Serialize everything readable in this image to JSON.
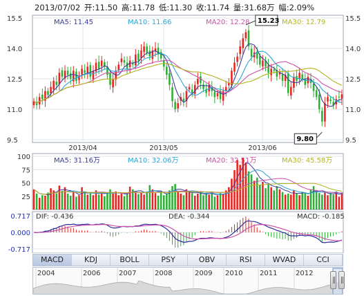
{
  "info": {
    "date": "2013/07/02",
    "open": "开:11.50",
    "high": "高:11.78",
    "low": "低:11.30",
    "close": "收:11.74",
    "volume": "量:31.68万",
    "change": "幅:2.09%"
  },
  "colors": {
    "up": "#e8231f",
    "down": "#2bb033",
    "ma5": "#3a3a9c",
    "ma10": "#2aa5d6",
    "ma20": "#cc4fa8",
    "ma30": "#b4b41e"
  },
  "tabs": [
    "MACD",
    "KDJ",
    "BOLL",
    "PSY",
    "OBV",
    "RSI",
    "WVAD",
    "CCI"
  ],
  "active_tab": "MACD",
  "navigator_years": [
    "2004",
    "2006",
    "2007",
    "2008",
    "2009",
    "2010",
    "2011",
    "2012"
  ],
  "chart_data": [
    {
      "type": "candlestick",
      "y_ticks": [
        "15.5",
        "14.0",
        "12.5",
        "11.0",
        "9.5"
      ],
      "ylim": [
        9.5,
        15.5
      ],
      "x_ticks": [
        "2013/04",
        "2013/05",
        "2013/06"
      ],
      "legend": [
        "MA5: 11.45",
        "MA10: 11.66",
        "MA20: 12.28",
        "MA30: 12.79"
      ],
      "annotations": {
        "high": "15.23",
        "low": "9.80"
      },
      "closes": [
        11.4,
        11.2,
        11.6,
        11.5,
        11.9,
        11.7,
        12.1,
        12.4,
        12.2,
        12.8,
        12.6,
        12.9,
        12.7,
        12.5,
        12.9,
        12.4,
        12.6,
        13.0,
        12.8,
        13.1,
        12.6,
        12.9,
        13.3,
        13.0,
        13.4,
        13.1,
        12.7,
        12.2,
        12.5,
        12.9,
        13.2,
        13.5,
        13.3,
        13.0,
        13.4,
        13.2,
        13.7,
        13.4,
        13.9,
        14.1,
        13.8,
        13.6,
        13.9,
        14.0,
        13.7,
        13.5,
        13.1,
        12.7,
        12.2,
        11.4,
        11.0,
        11.3,
        11.6,
        11.4,
        11.9,
        12.1,
        11.8,
        12.2,
        12.5,
        12.3,
        12.0,
        11.8,
        12.2,
        11.9,
        11.6,
        11.8,
        11.5,
        11.9,
        12.1,
        12.3,
        12.9,
        13.3,
        13.6,
        14.1,
        14.5,
        14.8,
        14.1,
        13.6,
        13.8,
        13.5,
        13.2,
        13.4,
        13.1,
        12.8,
        13.0,
        12.9,
        12.6,
        12.8,
        12.4,
        12.7,
        11.8,
        12.1,
        12.6,
        12.4,
        12.8,
        12.5,
        12.2,
        12.6,
        12.3,
        11.9,
        11.6,
        11.0,
        10.4,
        11.3,
        11.6,
        11.4,
        11.2,
        11.5,
        11.6,
        11.74
      ]
    },
    {
      "type": "bar",
      "y_ticks": [
        "100",
        "75",
        "50",
        "25"
      ],
      "ylim": [
        0,
        100
      ],
      "legend": [
        "MA5: 31.16万",
        "MA10: 32.06万",
        "MA20: 32.51万",
        "MA30: 45.58万"
      ],
      "values": [
        38,
        30,
        22,
        27,
        26,
        32,
        40,
        36,
        30,
        45,
        35,
        42,
        30,
        26,
        34,
        24,
        27,
        42,
        33,
        28,
        31,
        27,
        36,
        28,
        33,
        25,
        31,
        38,
        30,
        34,
        27,
        30,
        25,
        31,
        43,
        38,
        34,
        29,
        33,
        28,
        34,
        46,
        38,
        31,
        26,
        34,
        27,
        30,
        36,
        44,
        48,
        33,
        30,
        27,
        38,
        35,
        31,
        26,
        30,
        33,
        27,
        31,
        28,
        33,
        24,
        27,
        31,
        29,
        36,
        42,
        58,
        74,
        93,
        84,
        97,
        88,
        72,
        66,
        54,
        60,
        46,
        52,
        40,
        48,
        42,
        36,
        44,
        38,
        33,
        28,
        30,
        28,
        36,
        31,
        27,
        33,
        31,
        26,
        38,
        44,
        35,
        31,
        28,
        33,
        27,
        31,
        28,
        34,
        24,
        32
      ]
    },
    {
      "type": "line",
      "y_ticks": [
        "0.717",
        "0.000",
        "-0.717"
      ],
      "ylim": [
        -0.9,
        0.9
      ],
      "legend": [
        "DIF: -0.436",
        "DEA: -0.344",
        "MACD: -0.185"
      ]
    }
  ]
}
